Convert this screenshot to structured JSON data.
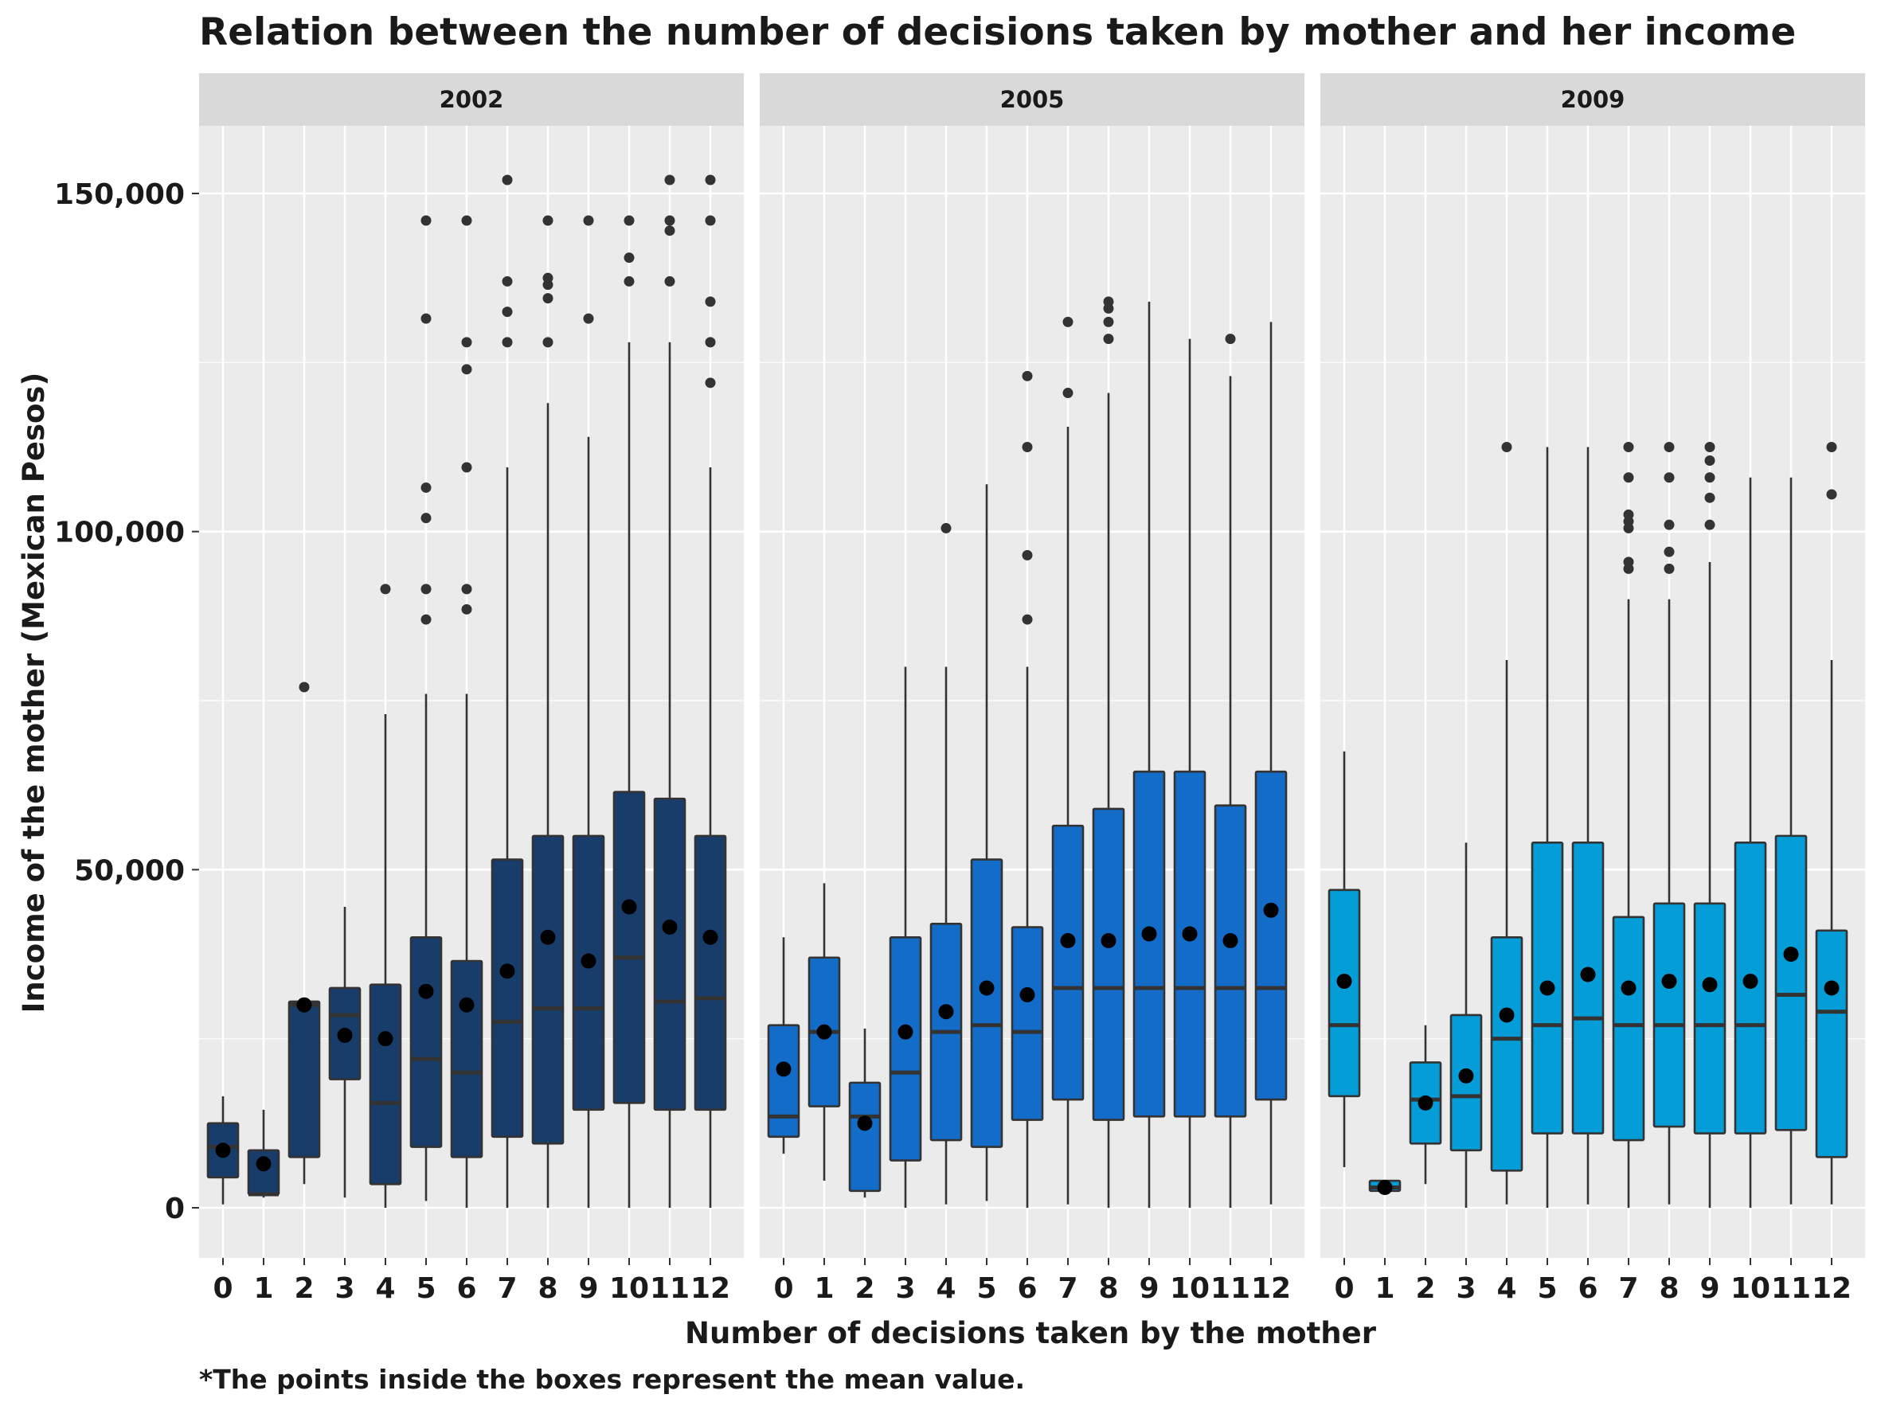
{
  "chart_data": {
    "type": "boxplot",
    "title": "Relation between the number of decisions taken by mother and her income",
    "xlabel": "Number of decisions taken by the mother",
    "ylabel": "Income of the mother (Mexican Pesos)",
    "caption": "*The points inside the boxes represent the mean value.",
    "ylim": [
      -7500,
      160000
    ],
    "yticks": [
      0,
      50000,
      100000,
      150000
    ],
    "ytick_labels": [
      "0",
      "50,000",
      "100,000",
      "150,000"
    ],
    "categories": [
      "0",
      "1",
      "2",
      "3",
      "4",
      "5",
      "6",
      "7",
      "8",
      "9",
      "10",
      "11",
      "12"
    ],
    "grid": true,
    "legend": "none",
    "panels": [
      {
        "label": "2002",
        "fill": "#193d6b",
        "boxes": [
          {
            "x": "0",
            "whislo": 500,
            "q1": 4500,
            "med": 9000,
            "q3": 12500,
            "whishi": 16500,
            "mean": 8500,
            "outliers": []
          },
          {
            "x": "1",
            "whislo": 1500,
            "q1": 2000,
            "med": 2000,
            "q3": 8500,
            "whishi": 14500,
            "mean": 6500,
            "outliers": []
          },
          {
            "x": "2",
            "whislo": 3500,
            "q1": 7500,
            "med": 30000,
            "q3": 30500,
            "whishi": 30500,
            "mean": 30000,
            "outliers": [
              77000
            ]
          },
          {
            "x": "3",
            "whislo": 1500,
            "q1": 19000,
            "med": 28500,
            "q3": 32500,
            "whishi": 44500,
            "mean": 25500,
            "outliers": []
          },
          {
            "x": "4",
            "whislo": 0,
            "q1": 3500,
            "med": 15500,
            "q3": 33000,
            "whishi": 73000,
            "mean": 25000,
            "outliers": [
              91500
            ]
          },
          {
            "x": "5",
            "whislo": 1000,
            "q1": 9000,
            "med": 22000,
            "q3": 40000,
            "whishi": 76000,
            "mean": 32000,
            "outliers": [
              87000,
              91500,
              102000,
              106500,
              131500,
              146000
            ]
          },
          {
            "x": "6",
            "whislo": 0,
            "q1": 7500,
            "med": 20000,
            "q3": 36500,
            "whishi": 76000,
            "mean": 30000,
            "outliers": [
              88500,
              91500,
              109500,
              124000,
              128000,
              146000
            ]
          },
          {
            "x": "7",
            "whislo": 0,
            "q1": 10500,
            "med": 27500,
            "q3": 51500,
            "whishi": 109500,
            "mean": 35000,
            "outliers": [
              128000,
              132500,
              137000,
              152000
            ]
          },
          {
            "x": "8",
            "whislo": 0,
            "q1": 9500,
            "med": 29500,
            "q3": 55000,
            "whishi": 119000,
            "mean": 40000,
            "outliers": [
              128000,
              134500,
              136500,
              137500,
              146000
            ]
          },
          {
            "x": "9",
            "whislo": 0,
            "q1": 14500,
            "med": 29500,
            "q3": 55000,
            "whishi": 114000,
            "mean": 36500,
            "outliers": [
              131500,
              146000
            ]
          },
          {
            "x": "10",
            "whislo": 0,
            "q1": 15500,
            "med": 37000,
            "q3": 61500,
            "whishi": 128000,
            "mean": 44500,
            "outliers": [
              137000,
              140500,
              146000
            ]
          },
          {
            "x": "11",
            "whislo": 0,
            "q1": 14500,
            "med": 30500,
            "q3": 60500,
            "whishi": 128000,
            "mean": 41500,
            "outliers": [
              137000,
              144500,
              146000,
              152000
            ]
          },
          {
            "x": "12",
            "whislo": 0,
            "q1": 14500,
            "med": 31000,
            "q3": 55000,
            "whishi": 109500,
            "mean": 40000,
            "outliers": [
              122000,
              128000,
              134000,
              146000,
              152000
            ]
          }
        ]
      },
      {
        "label": "2005",
        "fill": "#136dc8",
        "boxes": [
          {
            "x": "0",
            "whislo": 8000,
            "q1": 10500,
            "med": 13500,
            "q3": 27000,
            "whishi": 40000,
            "mean": 20500,
            "outliers": []
          },
          {
            "x": "1",
            "whislo": 4000,
            "q1": 15000,
            "med": 26000,
            "q3": 37000,
            "whishi": 48000,
            "mean": 26000,
            "outliers": []
          },
          {
            "x": "2",
            "whislo": 1500,
            "q1": 2500,
            "med": 13500,
            "q3": 18500,
            "whishi": 26500,
            "mean": 12500,
            "outliers": []
          },
          {
            "x": "3",
            "whislo": 0,
            "q1": 7000,
            "med": 20000,
            "q3": 40000,
            "whishi": 80000,
            "mean": 26000,
            "outliers": []
          },
          {
            "x": "4",
            "whislo": 500,
            "q1": 10000,
            "med": 26000,
            "q3": 42000,
            "whishi": 80000,
            "mean": 29000,
            "outliers": [
              100500
            ]
          },
          {
            "x": "5",
            "whislo": 1000,
            "q1": 9000,
            "med": 27000,
            "q3": 51500,
            "whishi": 107000,
            "mean": 32500,
            "outliers": []
          },
          {
            "x": "6",
            "whislo": 0,
            "q1": 13000,
            "med": 26000,
            "q3": 41500,
            "whishi": 80000,
            "mean": 31500,
            "outliers": [
              87000,
              96500,
              112500,
              123000
            ]
          },
          {
            "x": "7",
            "whislo": 500,
            "q1": 16000,
            "med": 32500,
            "q3": 56500,
            "whishi": 115500,
            "mean": 39500,
            "outliers": [
              120500,
              131000
            ]
          },
          {
            "x": "8",
            "whislo": 0,
            "q1": 13000,
            "med": 32500,
            "q3": 59000,
            "whishi": 120500,
            "mean": 39500,
            "outliers": [
              128500,
              131000,
              133000,
              134000
            ]
          },
          {
            "x": "9",
            "whislo": 0,
            "q1": 13500,
            "med": 32500,
            "q3": 64500,
            "whishi": 134000,
            "mean": 40500,
            "outliers": []
          },
          {
            "x": "10",
            "whislo": 0,
            "q1": 13500,
            "med": 32500,
            "q3": 64500,
            "whishi": 128500,
            "mean": 40500,
            "outliers": []
          },
          {
            "x": "11",
            "whislo": 0,
            "q1": 13500,
            "med": 32500,
            "q3": 59500,
            "whishi": 123000,
            "mean": 39500,
            "outliers": [
              128500
            ]
          },
          {
            "x": "12",
            "whislo": 500,
            "q1": 16000,
            "med": 32500,
            "q3": 64500,
            "whishi": 131000,
            "mean": 44000,
            "outliers": []
          }
        ]
      },
      {
        "label": "2009",
        "fill": "#059dd8",
        "boxes": [
          {
            "x": "0",
            "whislo": 6000,
            "q1": 16500,
            "med": 27000,
            "q3": 47000,
            "whishi": 67500,
            "mean": 33500,
            "outliers": []
          },
          {
            "x": "1",
            "whislo": 2500,
            "q1": 2500,
            "med": 3000,
            "q3": 4000,
            "whishi": 4000,
            "mean": 3000,
            "outliers": []
          },
          {
            "x": "2",
            "whislo": 3500,
            "q1": 9500,
            "med": 16000,
            "q3": 21500,
            "whishi": 27000,
            "mean": 15500,
            "outliers": []
          },
          {
            "x": "3",
            "whislo": 0,
            "q1": 8500,
            "med": 16500,
            "q3": 28500,
            "whishi": 54000,
            "mean": 19500,
            "outliers": []
          },
          {
            "x": "4",
            "whislo": 500,
            "q1": 5500,
            "med": 25000,
            "q3": 40000,
            "whishi": 81000,
            "mean": 28500,
            "outliers": [
              112500
            ]
          },
          {
            "x": "5",
            "whislo": 0,
            "q1": 11000,
            "med": 27000,
            "q3": 54000,
            "whishi": 112500,
            "mean": 32500,
            "outliers": []
          },
          {
            "x": "6",
            "whislo": 500,
            "q1": 11000,
            "med": 28000,
            "q3": 54000,
            "whishi": 112500,
            "mean": 34500,
            "outliers": []
          },
          {
            "x": "7",
            "whislo": 0,
            "q1": 10000,
            "med": 27000,
            "q3": 43000,
            "whishi": 90000,
            "mean": 32500,
            "outliers": [
              94500,
              95500,
              100500,
              101500,
              102500,
              108000,
              112500
            ]
          },
          {
            "x": "8",
            "whislo": 500,
            "q1": 12000,
            "med": 27000,
            "q3": 45000,
            "whishi": 90000,
            "mean": 33500,
            "outliers": [
              94500,
              97000,
              101000,
              108000,
              112500
            ]
          },
          {
            "x": "9",
            "whislo": 0,
            "q1": 11000,
            "med": 27000,
            "q3": 45000,
            "whishi": 95500,
            "mean": 33000,
            "outliers": [
              101000,
              105000,
              108000,
              110500,
              112500
            ]
          },
          {
            "x": "10",
            "whislo": 0,
            "q1": 11000,
            "med": 27000,
            "q3": 54000,
            "whishi": 108000,
            "mean": 33500,
            "outliers": []
          },
          {
            "x": "11",
            "whislo": 500,
            "q1": 11500,
            "med": 31500,
            "q3": 55000,
            "whishi": 108000,
            "mean": 37500,
            "outliers": []
          },
          {
            "x": "12",
            "whislo": 500,
            "q1": 7500,
            "med": 29000,
            "q3": 41000,
            "whishi": 81000,
            "mean": 32500,
            "outliers": [
              105500,
              112500
            ]
          }
        ]
      }
    ]
  }
}
